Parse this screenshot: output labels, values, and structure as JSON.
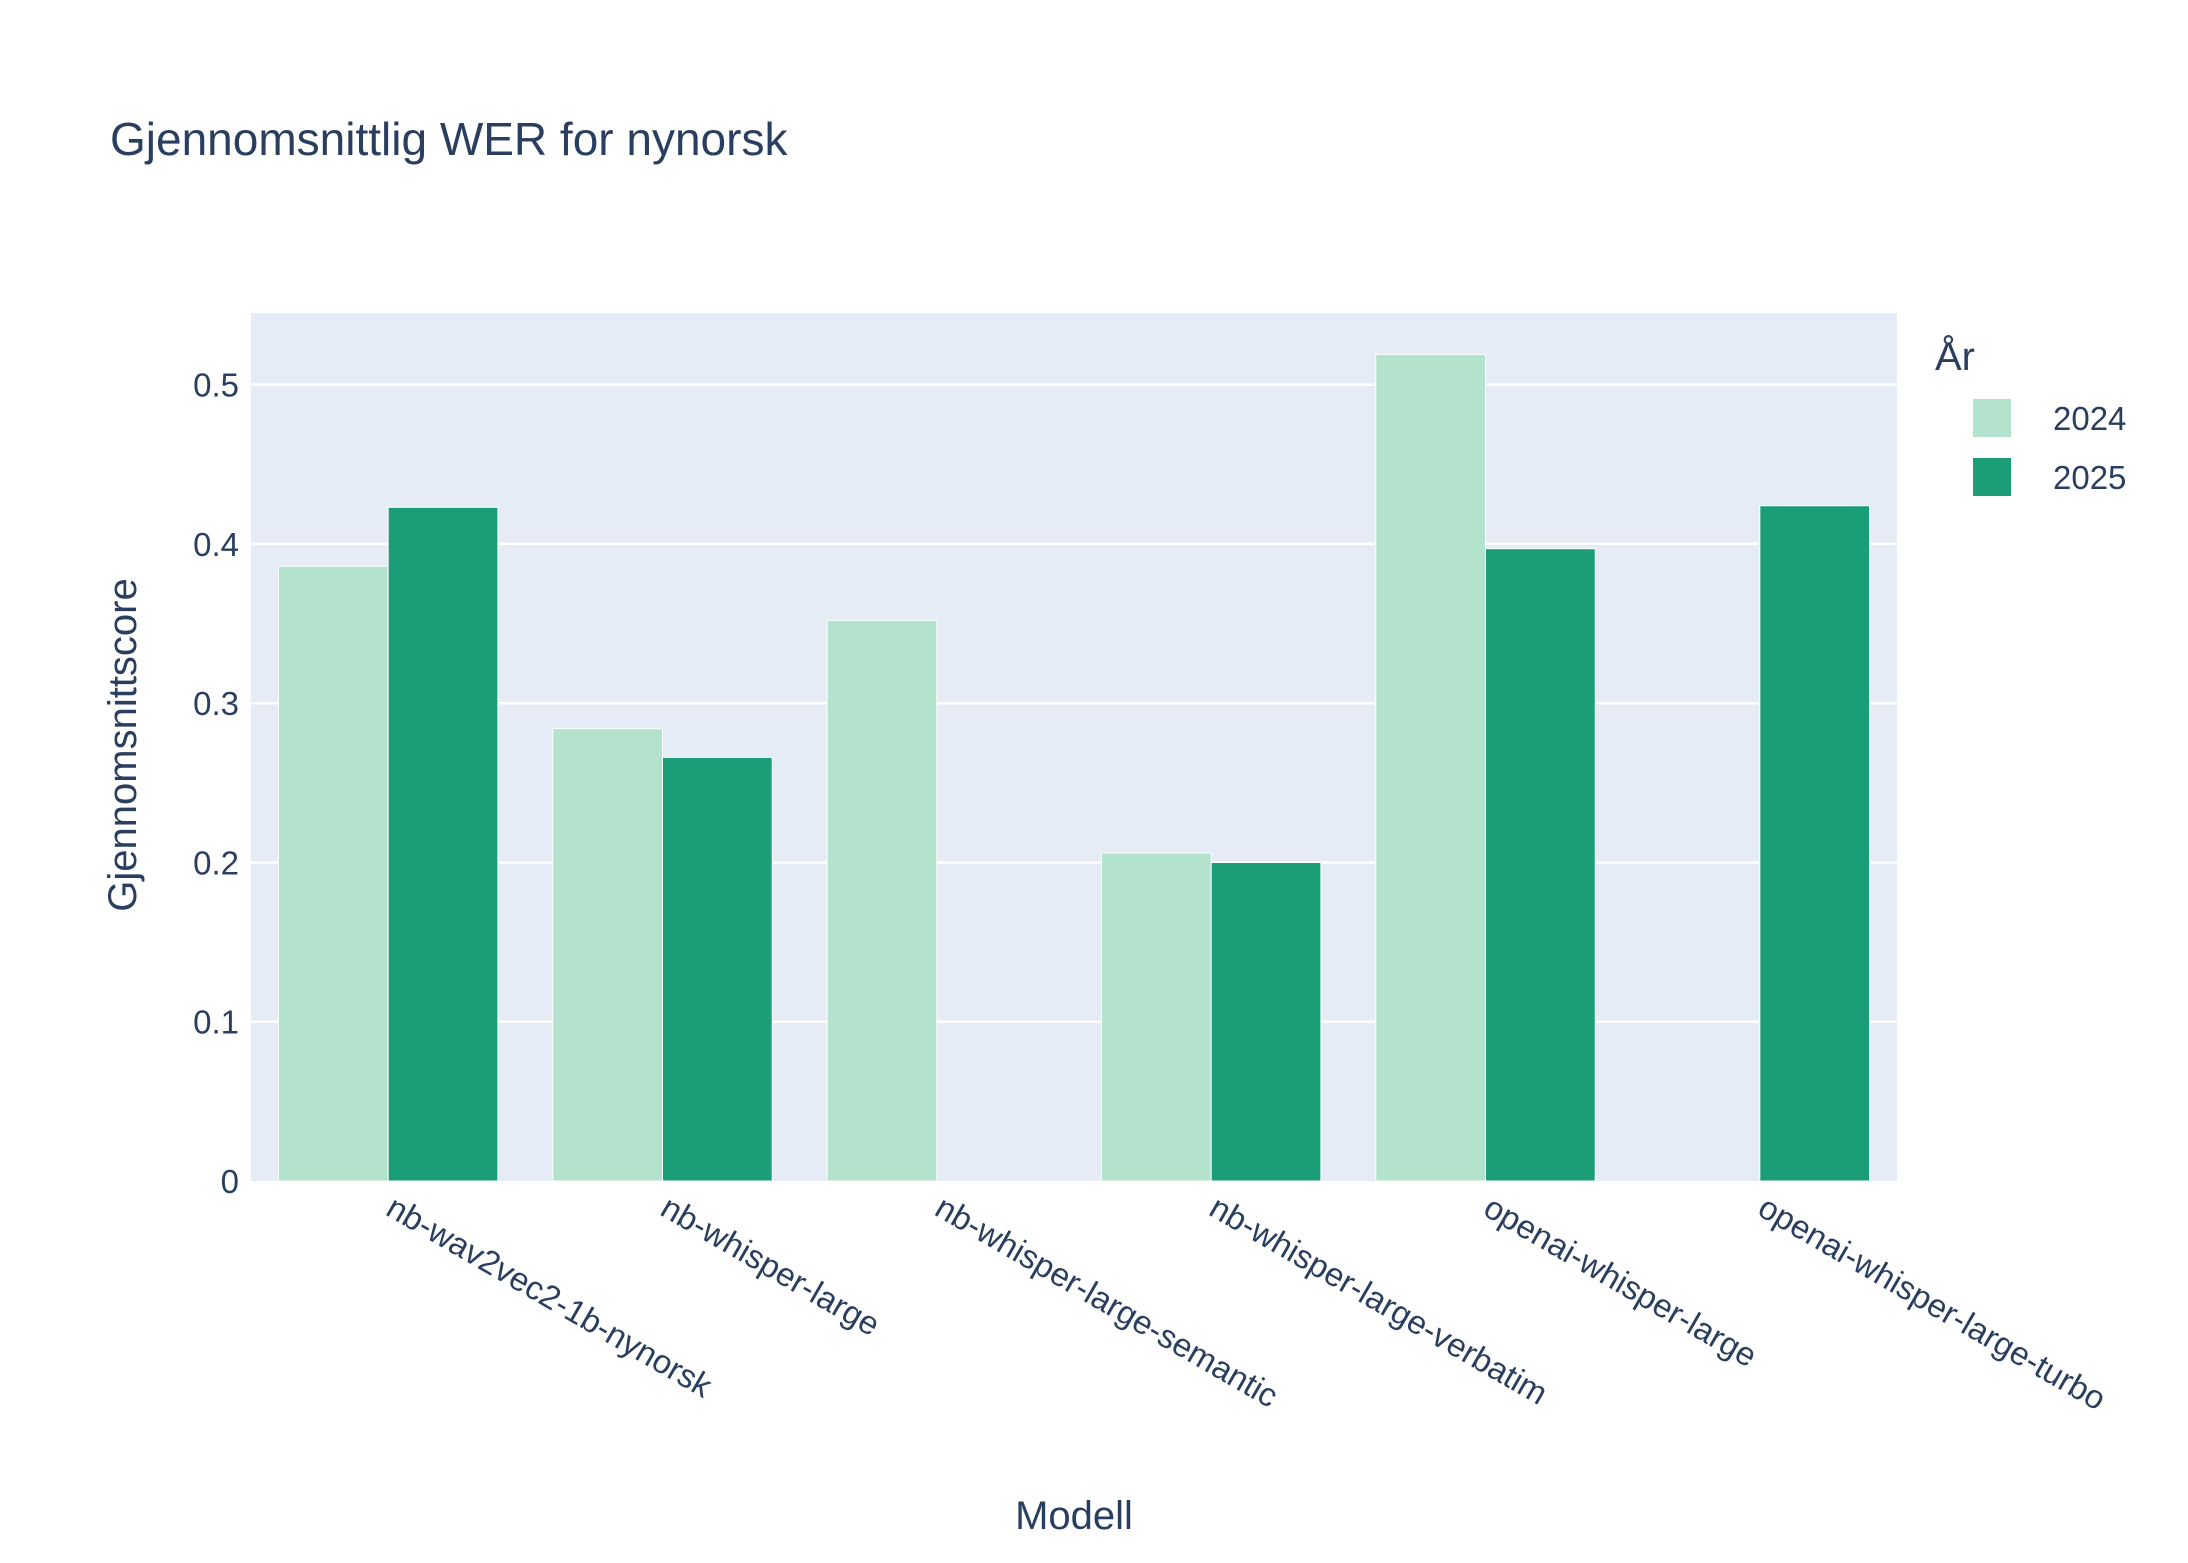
{
  "chart_data": {
    "type": "bar",
    "title": "Gjennomsnittlig WER for nynorsk",
    "xlabel": "Modell",
    "ylabel": "Gjennomsnittscore",
    "ylim": [
      0,
      0.545
    ],
    "yticks": [
      0,
      0.1,
      0.2,
      0.3,
      0.4,
      0.5
    ],
    "ytick_labels": [
      "0",
      "0.1",
      "0.2",
      "0.3",
      "0.4",
      "0.5"
    ],
    "grid": true,
    "legend_title": "År",
    "legend_position": "top-right",
    "categories": [
      "nb-wav2vec2-1b-nynorsk",
      "nb-whisper-large",
      "nb-whisper-large-semantic",
      "nb-whisper-large-verbatim",
      "openai-whisper-large",
      "openai-whisper-large-turbo"
    ],
    "series": [
      {
        "name": "2024",
        "color": "#b3e2cd",
        "values": [
          0.386,
          0.284,
          0.352,
          0.206,
          0.519,
          null
        ]
      },
      {
        "name": "2025",
        "color": "#1b9e77",
        "values": [
          0.423,
          0.266,
          null,
          0.2,
          0.397,
          0.424
        ]
      }
    ],
    "colors": {
      "plot_background": "#e5ecf6",
      "gridline": "#ffffff",
      "text": "#2a3f5f"
    }
  }
}
